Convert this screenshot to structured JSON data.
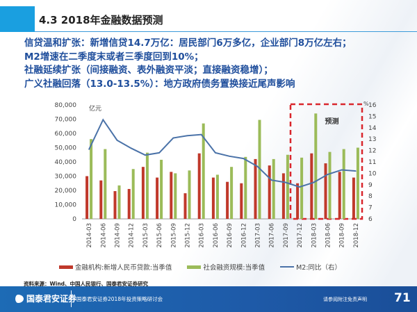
{
  "header": {
    "title": "4.3 2018年金融数据预测"
  },
  "bullets": [
    "信贷温和扩张：新增信贷14.7万亿：居民部门6万多亿，企业部门8万亿左右；",
    "M2增速在二季度末或者三季度回到10%；",
    "社融延续扩张（间接融资、表外融资平淡；直接融资稳增）；",
    "广义社融回落（13.0-13.5%）：地方政府债务置换接近尾声影响"
  ],
  "chart_data": {
    "type": "bar",
    "categories": [
      "2014-03",
      "2014-06",
      "2014-09",
      "2014-12",
      "2015-03",
      "2015-06",
      "2015-09",
      "2015-12",
      "2016-03",
      "2016-06",
      "2016-09",
      "2016-12",
      "2017-03",
      "2017-06",
      "2017-09",
      "2017-12",
      "2018-03",
      "2018-06",
      "2018-09",
      "2018-12"
    ],
    "series": [
      {
        "name": "金融机构:新增人民币贷款:当季值",
        "type": "bar",
        "axis": "left",
        "color": "#c0392b",
        "values": [
          30000,
          27000,
          19500,
          21000,
          36500,
          29000,
          33000,
          18000,
          46000,
          29000,
          26000,
          25000,
          42000,
          37500,
          32000,
          25000,
          46000,
          39000,
          33000,
          29000
        ]
      },
      {
        "name": "社会融资规模:当季值",
        "type": "bar",
        "axis": "left",
        "color": "#9bbb59",
        "values": [
          56000,
          49000,
          23500,
          35000,
          46500,
          41500,
          32000,
          34000,
          67000,
          31000,
          36500,
          43500,
          69500,
          42000,
          45000,
          43000,
          74000,
          47000,
          49000,
          50000
        ]
      },
      {
        "name": "M2:同比（右）",
        "type": "line",
        "axis": "right",
        "color": "#4a72a8",
        "values": [
          12.1,
          14.7,
          12.9,
          12.2,
          11.6,
          11.8,
          13.1,
          13.3,
          13.4,
          11.8,
          11.5,
          11.3,
          10.6,
          9.4,
          9.2,
          8.8,
          9.2,
          9.9,
          10.3,
          10.2
        ]
      }
    ],
    "ylabel": "亿元",
    "y2label": "%",
    "ylim": [
      0,
      80000
    ],
    "yticks": [
      "0",
      "10,000",
      "20,000",
      "30,000",
      "40,000",
      "50,000",
      "60,000",
      "70,000",
      "80,000"
    ],
    "y2lim": [
      6,
      16
    ],
    "y2ticks": [
      "6",
      "7",
      "8",
      "9",
      "10",
      "11",
      "12",
      "13",
      "14",
      "15",
      "16"
    ],
    "annotation": "预测",
    "forecast_range": [
      "2017-12",
      "2018-12"
    ],
    "forecast_color": "#d9262c",
    "grid": false,
    "legend": "bottom"
  },
  "source": "资料来源：Wind、中国人民银行、国泰君安证券研究",
  "footer": {
    "logo": "国泰君安证券",
    "conference": "国泰君安证券2018年投资策略研讨会",
    "disclaimer": "请参阅附注免责声明",
    "page": "71"
  }
}
